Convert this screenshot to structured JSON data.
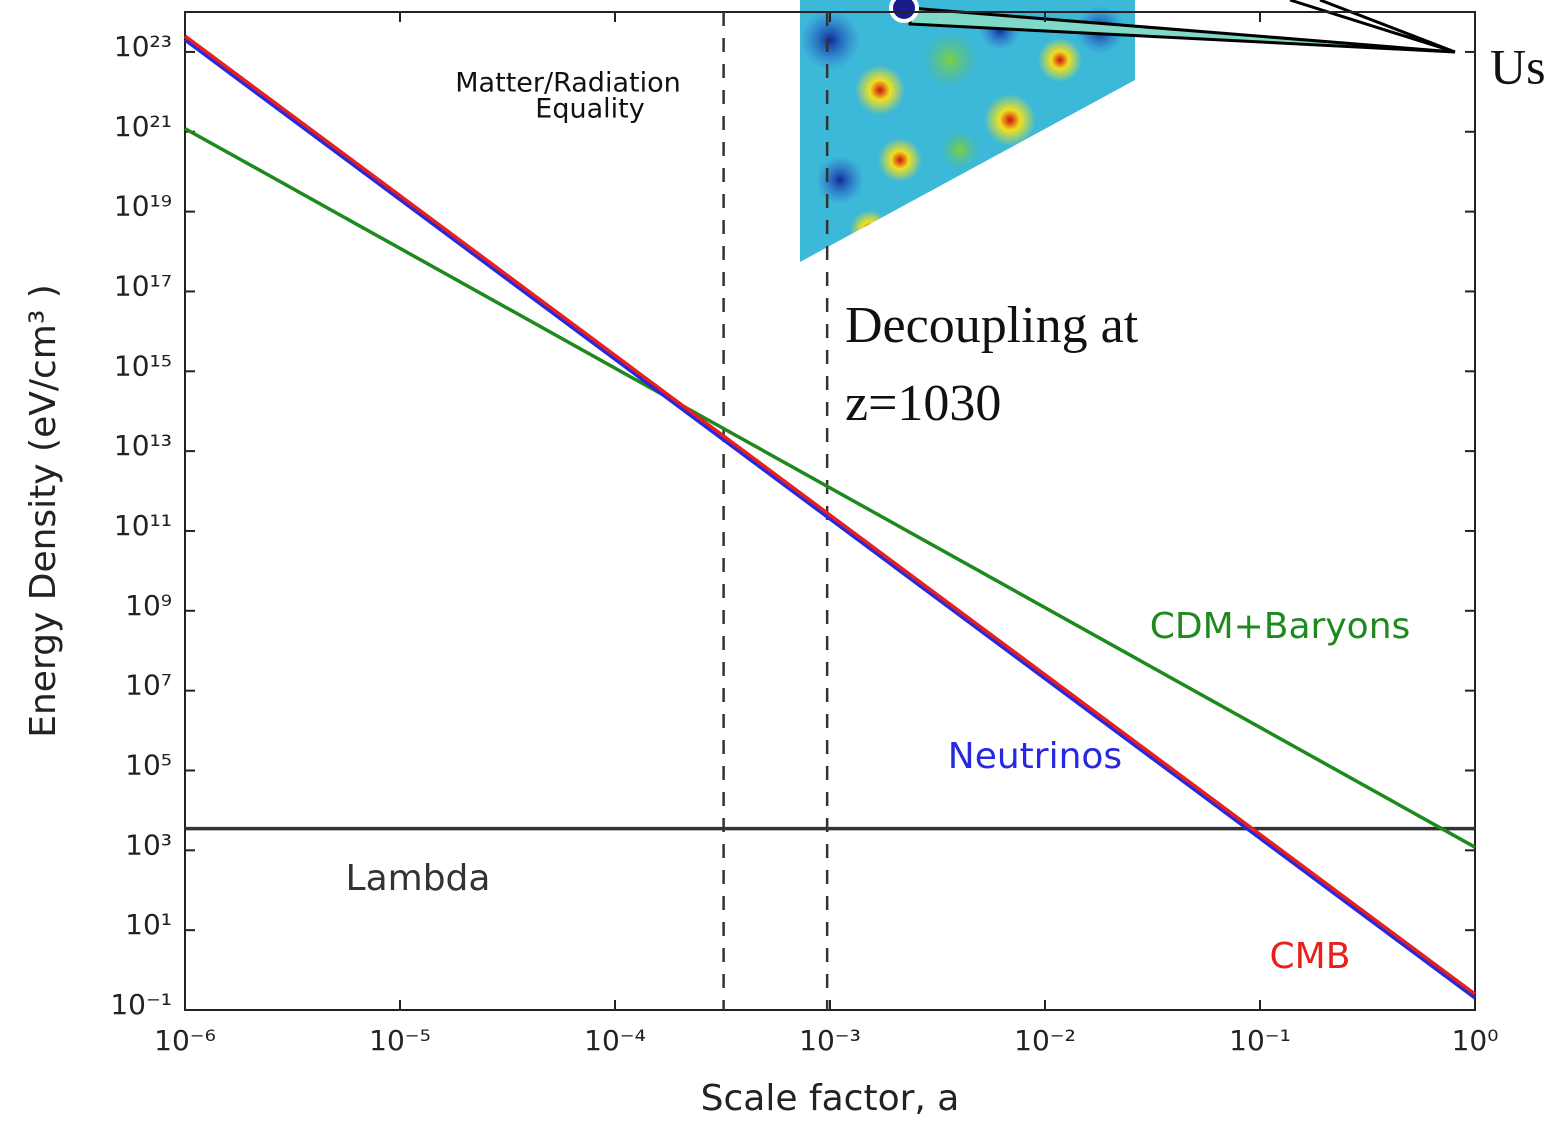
{
  "chart_data": {
    "type": "line",
    "xscale": "log",
    "yscale": "log",
    "xlabel": "Scale factor, a",
    "ylabel": "Energy Density (eV/cm³ )",
    "x": [
      1e-06,
      1
    ],
    "series": [
      {
        "name": "Lambda",
        "color": "#333333",
        "values": [
          3500,
          3500
        ]
      },
      {
        "name": "CDM+Baryons",
        "color": "#1e8a1e",
        "values": [
          1.2e+21,
          1200
        ]
      },
      {
        "name": "Neutrinos",
        "color": "#2828e0",
        "values": [
          2e+23,
          0.2
        ]
      },
      {
        "name": "CMB",
        "color": "#e8201c",
        "values": [
          2.5e+23,
          0.25
        ]
      }
    ],
    "vlines": [
      0.00032,
      0.00097
    ],
    "annotations": [
      "Matter/Radiation",
      "Equality",
      "Decoupling at",
      "z=1030",
      "Us"
    ],
    "xlim": [
      1e-06,
      1
    ],
    "xticks": [
      {
        "value": 1e-06,
        "label": "10⁻⁶"
      },
      {
        "value": 1e-05,
        "label": "10⁻⁵"
      },
      {
        "value": 0.0001,
        "label": "10⁻⁴"
      },
      {
        "value": 0.001,
        "label": "10⁻³"
      },
      {
        "value": 0.01,
        "label": "10⁻²"
      },
      {
        "value": 0.1,
        "label": "10⁻¹"
      },
      {
        "value": 1,
        "label": "10⁰"
      }
    ],
    "ylim": [
      0.1,
      1e+24
    ],
    "yticks": [
      {
        "value": 0.1,
        "label": "10⁻¹"
      },
      {
        "value": 10,
        "label": "10¹"
      },
      {
        "value": 1000,
        "label": "10³"
      },
      {
        "value": 100000,
        "label": "10⁵"
      },
      {
        "value": 10000000,
        "label": "10⁷"
      },
      {
        "value": 1000000000,
        "label": "10⁹"
      },
      {
        "value": 100000000000,
        "label": "10¹¹"
      },
      {
        "value": 10000000000000,
        "label": "10¹³"
      },
      {
        "value": 1000000000000000,
        "label": "10¹⁵"
      },
      {
        "value": 100000000000000000,
        "label": "10¹⁷"
      },
      {
        "value": 1e+19,
        "label": "10¹⁹"
      },
      {
        "value": 1e+21,
        "label": "10²¹"
      },
      {
        "value": 1e+23,
        "label": "10²³"
      }
    ]
  }
}
